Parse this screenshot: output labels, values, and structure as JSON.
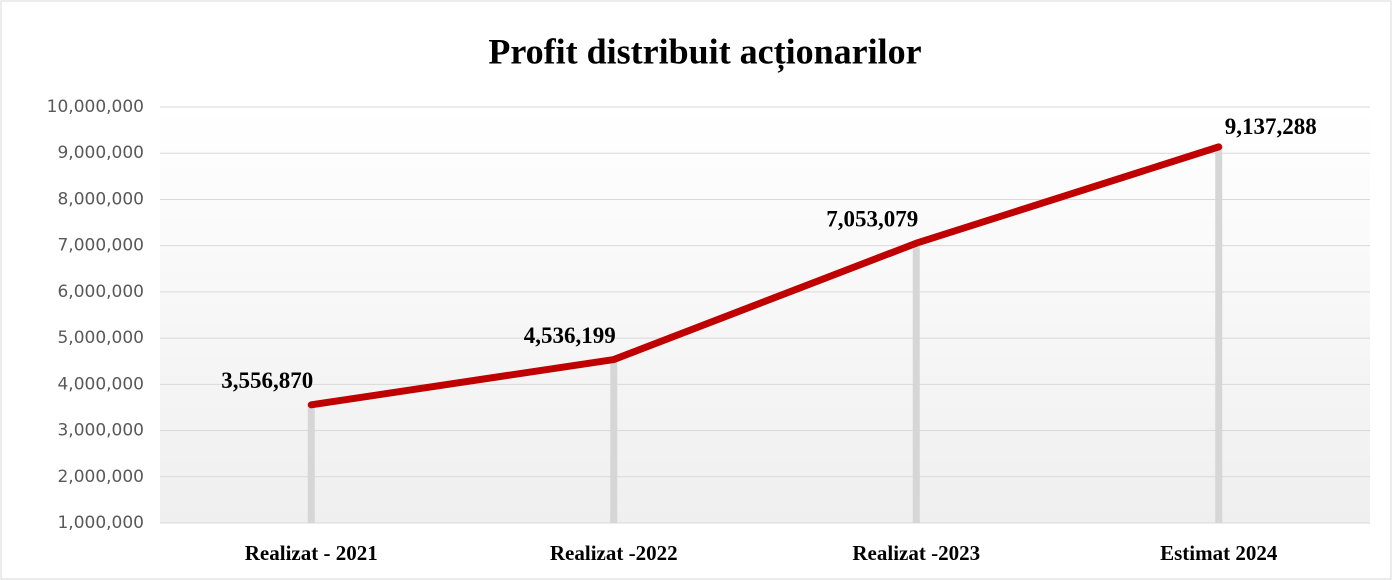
{
  "chart_data": {
    "type": "line",
    "title": "Profit distribuit acționarilor",
    "categories": [
      "Realizat - 2021",
      "Realizat -2022",
      "Realizat -2023",
      "Estimat 2024"
    ],
    "values": [
      3556870,
      4536199,
      7053079,
      9137288
    ],
    "value_labels": [
      "3,556,870",
      "4,536,199",
      "7,053,079",
      "9,137,288"
    ],
    "color": "#c00000",
    "ylim": [
      1000000,
      10000000
    ],
    "yticks": [
      {
        "value": 1000000,
        "label": "1,000,000"
      },
      {
        "value": 2000000,
        "label": "2,000,000"
      },
      {
        "value": 3000000,
        "label": "3,000,000"
      },
      {
        "value": 4000000,
        "label": "4,000,000"
      },
      {
        "value": 5000000,
        "label": "5,000,000"
      },
      {
        "value": 6000000,
        "label": "6,000,000"
      },
      {
        "value": 7000000,
        "label": "7,000,000"
      },
      {
        "value": 8000000,
        "label": "8,000,000"
      },
      {
        "value": 9000000,
        "label": "9,000,000"
      },
      {
        "value": 10000000,
        "label": "10,000,000"
      }
    ],
    "grid": true
  }
}
